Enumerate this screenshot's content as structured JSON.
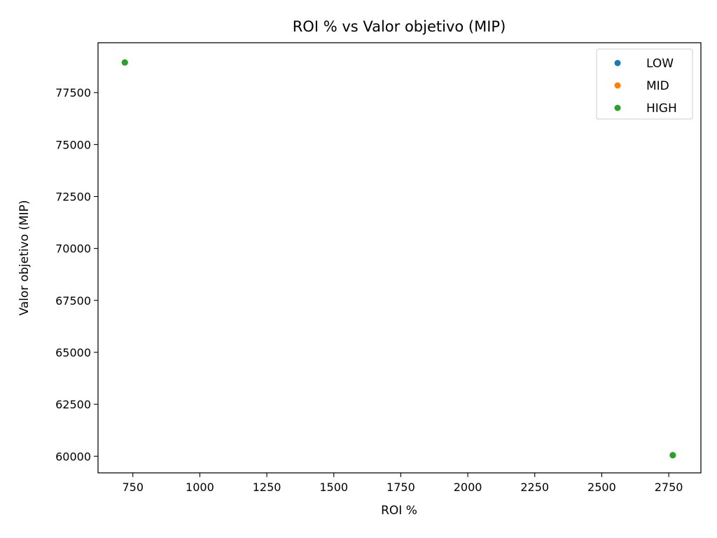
{
  "chart_data": {
    "type": "scatter",
    "title": "ROI % vs Valor objetivo (MIP)",
    "xlabel": "ROI %",
    "ylabel": "Valor objetivo (MIP)",
    "xlim": [
      620,
      2870
    ],
    "ylim": [
      59200,
      79900
    ],
    "xticks": [
      750,
      1000,
      1250,
      1500,
      1750,
      2000,
      2250,
      2500,
      2750
    ],
    "yticks": [
      60000,
      62500,
      65000,
      67500,
      70000,
      72500,
      75000,
      77500
    ],
    "grid": false,
    "legend_position": "top-right",
    "series": [
      {
        "name": "LOW",
        "color": "#1f77b4",
        "points": [
          {
            "x": 720,
            "y": 78950
          },
          {
            "x": 2765,
            "y": 60050
          }
        ]
      },
      {
        "name": "MID",
        "color": "#ff7f0e",
        "points": [
          {
            "x": 720,
            "y": 78950
          },
          {
            "x": 2765,
            "y": 60050
          }
        ]
      },
      {
        "name": "HIGH",
        "color": "#2ca02c",
        "points": [
          {
            "x": 720,
            "y": 78950
          },
          {
            "x": 2765,
            "y": 60050
          }
        ]
      }
    ]
  }
}
